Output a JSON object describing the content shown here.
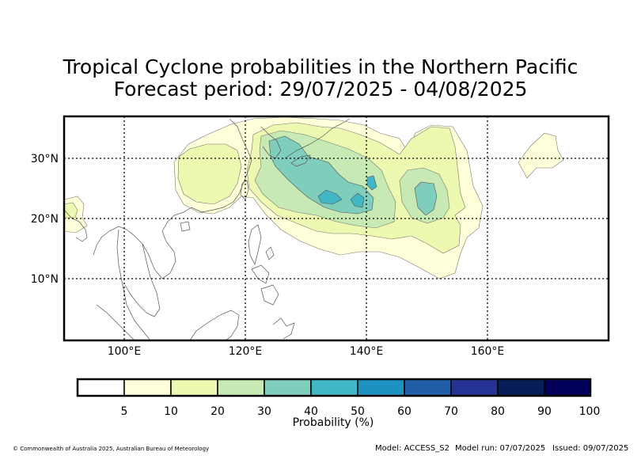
{
  "title": {
    "line1": "Tropical Cyclone probabilities in the Northern Pacific",
    "line2": "Forecast period: 29/07/2025 - 04/08/2025"
  },
  "map": {
    "lon_range": [
      90,
      180
    ],
    "lat_range": [
      0,
      37
    ],
    "lon_ticks": [
      {
        "value": 100,
        "label": "100°E"
      },
      {
        "value": 120,
        "label": "120°E"
      },
      {
        "value": 140,
        "label": "140°E"
      },
      {
        "value": 160,
        "label": "160°E"
      }
    ],
    "lat_ticks": [
      {
        "value": 10,
        "label": "10°N"
      },
      {
        "value": 20,
        "label": "20°N"
      },
      {
        "value": 30,
        "label": "30°N"
      }
    ],
    "gridlines": "dotted",
    "coastline_color": "#555555"
  },
  "colorbar": {
    "label": "Probability (%)",
    "ticks": [
      "5",
      "10",
      "20",
      "30",
      "40",
      "50",
      "60",
      "70",
      "80",
      "90",
      "100"
    ],
    "colors": [
      "#ffffff",
      "#ffffd9",
      "#edf8b1",
      "#c7e9b4",
      "#7fcdbb",
      "#41b6c4",
      "#1d91c0",
      "#225ea8",
      "#253494",
      "#081d58",
      "#03005a"
    ]
  },
  "footer": {
    "copyright": "© Commonwealth of Australia 2025, Australian Bureau of Meteorology",
    "model": "Model: ACCESS_S2",
    "model_run": "Model run: 07/07/2025",
    "issued": "Issued: 09/07/2025"
  }
}
